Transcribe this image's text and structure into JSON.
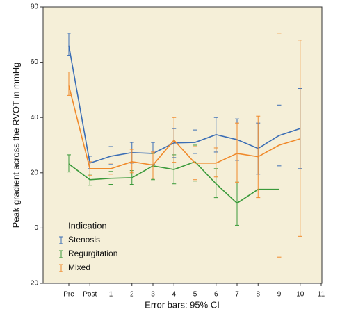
{
  "chart_data": {
    "type": "line",
    "y_label": "Peak gradient across the RVOT in mmHg",
    "x_label": "Error bars: 95% CI",
    "legend_title": "Indication",
    "legend": "bottom-left",
    "background": "#f5efd8",
    "categories": [
      "Pre",
      "Post",
      "1",
      "2",
      "3",
      "4",
      "5",
      "6",
      "7",
      "8",
      "9",
      "10",
      "11"
    ],
    "ylim": [
      -20,
      80
    ],
    "yticks": [
      -20,
      0,
      20,
      40,
      60,
      80
    ],
    "series": [
      {
        "name": "Stenosis",
        "color": "#3a6db5",
        "values": [
          66,
          23.5,
          26,
          27.3,
          27,
          30.8,
          31,
          33.8,
          32,
          28.8,
          33.5,
          36,
          null
        ],
        "ci_low": [
          62.5,
          21.5,
          23,
          23.5,
          23,
          25.5,
          27,
          27.5,
          24.5,
          19.5,
          22.5,
          21.5,
          null
        ],
        "ci_high": [
          70.5,
          26,
          29.5,
          31,
          31,
          36,
          35.5,
          40,
          39.5,
          38,
          44.5,
          50.5,
          null
        ]
      },
      {
        "name": "Regurgitation",
        "color": "#3a9a3a",
        "values": [
          23.2,
          17.5,
          18,
          18.2,
          22.5,
          21.2,
          24,
          16,
          9,
          14,
          14,
          null,
          null
        ],
        "ci_low": [
          20.3,
          15.5,
          15.8,
          15.8,
          17.5,
          16,
          17,
          11,
          1,
          null,
          null,
          null,
          null
        ],
        "ci_high": [
          26.5,
          19.5,
          20.5,
          20.8,
          27,
          26.5,
          30,
          21.5,
          17,
          null,
          null,
          null,
          null
        ]
      },
      {
        "name": "Mixed",
        "color": "#f0892a",
        "values": [
          51.5,
          21.5,
          21.5,
          24,
          22.8,
          31.8,
          23.5,
          23.5,
          27,
          25.8,
          30,
          32.3,
          null
        ],
        "ci_low": [
          48,
          19,
          19.5,
          20,
          18,
          23.8,
          17.5,
          18.5,
          16.5,
          11,
          -10.5,
          -3,
          null
        ],
        "ci_high": [
          56.5,
          24,
          23.5,
          28.5,
          27.5,
          40,
          29.5,
          29,
          38,
          40.5,
          70.5,
          68,
          null
        ]
      }
    ]
  }
}
